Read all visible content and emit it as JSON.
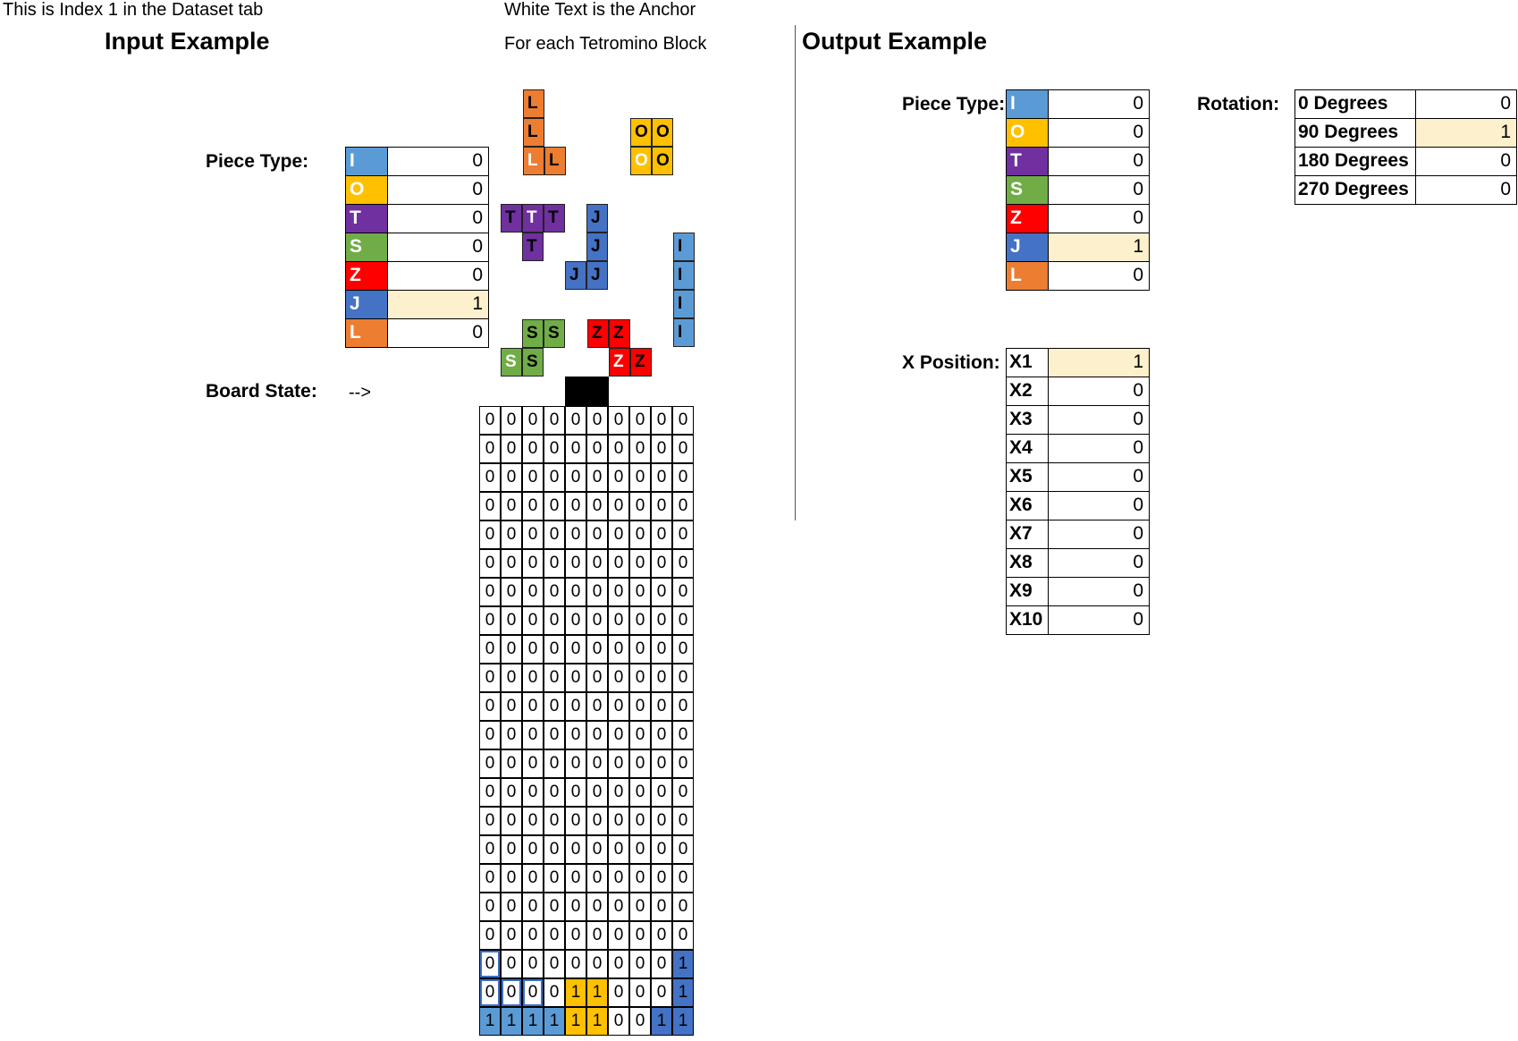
{
  "header": {
    "note_index": "This is Index 1 in the Dataset tab",
    "note_anchor": "White Text is the Anchor",
    "note_each": "For each Tetromino Block",
    "input_title": "Input Example",
    "output_title": "Output Example"
  },
  "colors": {
    "I": "#5b9bd5",
    "O": "#ffc000",
    "T": "#7030a0",
    "S": "#70ad47",
    "Z": "#ff0000",
    "J": "#4472c4",
    "L": "#ed7d31",
    "highlight": "#fdf0cc",
    "spawn": "#000000"
  },
  "input": {
    "piece_type_label": "Piece Type:",
    "piece_types": [
      {
        "letter": "I",
        "value": "0"
      },
      {
        "letter": "O",
        "value": "0"
      },
      {
        "letter": "T",
        "value": "0"
      },
      {
        "letter": "S",
        "value": "0"
      },
      {
        "letter": "Z",
        "value": "0"
      },
      {
        "letter": "J",
        "value": "1"
      },
      {
        "letter": "L",
        "value": "0"
      }
    ],
    "board_state_label": "Board State:",
    "arrow": "-->"
  },
  "tetrominoes": [
    {
      "piece": "L",
      "cells": [
        [
          "L",
          0,
          0,
          false
        ],
        [
          "L",
          0,
          1,
          false
        ],
        [
          "L",
          0,
          2,
          true
        ],
        [
          "L",
          1,
          2,
          false
        ]
      ]
    },
    {
      "piece": "O",
      "cells": [
        [
          "O",
          0,
          0,
          false
        ],
        [
          "O",
          1,
          0,
          false
        ],
        [
          "O",
          0,
          1,
          true
        ],
        [
          "O",
          1,
          1,
          false
        ]
      ]
    },
    {
      "piece": "T",
      "cells": [
        [
          "T",
          0,
          0,
          false
        ],
        [
          "T",
          1,
          0,
          true
        ],
        [
          "T",
          2,
          0,
          false
        ],
        [
          "T",
          1,
          1,
          false
        ]
      ]
    },
    {
      "piece": "J",
      "cells": [
        [
          "J",
          1,
          0,
          false
        ],
        [
          "J",
          1,
          1,
          false
        ],
        [
          "J",
          0,
          2,
          false
        ],
        [
          "J",
          1,
          2,
          false
        ]
      ]
    },
    {
      "piece": "I",
      "cells": [
        [
          "I",
          0,
          0,
          false
        ],
        [
          "I",
          0,
          1,
          false
        ],
        [
          "I",
          0,
          2,
          false
        ],
        [
          "I",
          0,
          3,
          false
        ]
      ]
    },
    {
      "piece": "S",
      "cells": [
        [
          "S",
          1,
          0,
          false
        ],
        [
          "S",
          2,
          0,
          false
        ],
        [
          "S",
          0,
          1,
          true
        ],
        [
          "S",
          1,
          1,
          false
        ]
      ]
    },
    {
      "piece": "Z",
      "cells": [
        [
          "Z",
          0,
          0,
          false
        ],
        [
          "Z",
          1,
          0,
          false
        ],
        [
          "Z",
          1,
          1,
          true
        ],
        [
          "Z",
          2,
          1,
          false
        ]
      ]
    }
  ],
  "board": [
    "0000000000",
    "0000000000",
    "0000000000",
    "0000000000",
    "0000000000",
    "0000000000",
    "0000000000",
    "0000000000",
    "0000000000",
    "0000000000",
    "0000000000",
    "0000000000",
    "0000000000",
    "0000000000",
    "0000000000",
    "0000000000",
    "0000000000",
    "0000000000",
    "0000000000",
    "0000000001",
    "0000110001",
    "1111110011"
  ],
  "board_colors": [
    "..........",
    "..........",
    "..........",
    "..........",
    "..........",
    "..........",
    "..........",
    "..........",
    "..........",
    "..........",
    "..........",
    "..........",
    "..........",
    "..........",
    "..........",
    "..........",
    "..........",
    "..........",
    "..........",
    ".........J",
    "....OO...J",
    "IIIIOO..JJ"
  ],
  "output": {
    "piece_type_label": "Piece Type:",
    "piece_types": [
      {
        "letter": "I",
        "value": "0"
      },
      {
        "letter": "O",
        "value": "0"
      },
      {
        "letter": "T",
        "value": "0"
      },
      {
        "letter": "S",
        "value": "0"
      },
      {
        "letter": "Z",
        "value": "0"
      },
      {
        "letter": "J",
        "value": "1"
      },
      {
        "letter": "L",
        "value": "0"
      }
    ],
    "rotation_label": "Rotation:",
    "rotations": [
      {
        "name": "0 Degrees",
        "value": "0"
      },
      {
        "name": "90 Degrees",
        "value": "1"
      },
      {
        "name": "180 Degrees",
        "value": "0"
      },
      {
        "name": "270 Degrees",
        "value": "0"
      }
    ],
    "x_position_label": "X Position:",
    "x_positions": [
      {
        "name": "X1",
        "value": "1"
      },
      {
        "name": "X2",
        "value": "0"
      },
      {
        "name": "X3",
        "value": "0"
      },
      {
        "name": "X4",
        "value": "0"
      },
      {
        "name": "X5",
        "value": "0"
      },
      {
        "name": "X6",
        "value": "0"
      },
      {
        "name": "X7",
        "value": "0"
      },
      {
        "name": "X8",
        "value": "0"
      },
      {
        "name": "X9",
        "value": "0"
      },
      {
        "name": "X10",
        "value": "0"
      }
    ]
  }
}
